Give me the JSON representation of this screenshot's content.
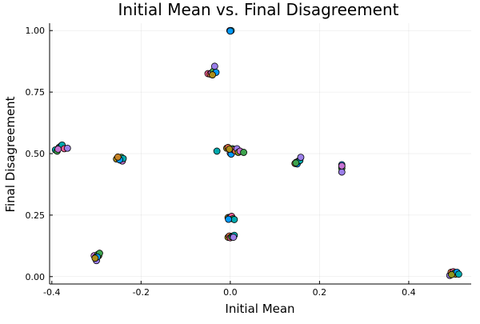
{
  "chart_data": {
    "type": "scatter",
    "title": "Initial Mean vs. Final Disagreement",
    "xlabel": "Initial Mean",
    "ylabel": "Final Disagreement",
    "xlim": [
      -0.405,
      0.54
    ],
    "ylim": [
      -0.03,
      1.03
    ],
    "x_ticks": [
      -0.4,
      -0.2,
      0.0,
      0.2,
      0.4
    ],
    "x_tick_labels": [
      "-0.4",
      "-0.2",
      "0.0",
      "0.2",
      "0.4"
    ],
    "y_ticks": [
      0.0,
      0.25,
      0.5,
      0.75,
      1.0
    ],
    "y_tick_labels": [
      "0.00",
      "0.25",
      "0.50",
      "0.75",
      "1.00"
    ],
    "grid": true,
    "legend": "none",
    "colors": [
      "#009AFA",
      "#E36F47",
      "#3EA44E",
      "#C371D2",
      "#AC8E18",
      "#00A9AD",
      "#ED5E93",
      "#C68225",
      "#00A98D",
      "#8E971E",
      "#00A9CD",
      "#9B7FE9"
    ],
    "points": [
      {
        "x": -0.392,
        "y": 0.515,
        "c": 5
      },
      {
        "x": -0.388,
        "y": 0.51,
        "c": 2
      },
      {
        "x": -0.384,
        "y": 0.525,
        "c": 4
      },
      {
        "x": -0.38,
        "y": 0.53,
        "c": 0
      },
      {
        "x": -0.377,
        "y": 0.535,
        "c": 5
      },
      {
        "x": -0.372,
        "y": 0.52,
        "c": 6
      },
      {
        "x": -0.365,
        "y": 0.522,
        "c": 11
      },
      {
        "x": -0.386,
        "y": 0.518,
        "c": 3
      },
      {
        "x": -0.255,
        "y": 0.478,
        "c": 4
      },
      {
        "x": -0.25,
        "y": 0.482,
        "c": 1
      },
      {
        "x": -0.247,
        "y": 0.474,
        "c": 6
      },
      {
        "x": -0.244,
        "y": 0.485,
        "c": 2
      },
      {
        "x": -0.242,
        "y": 0.47,
        "c": 3
      },
      {
        "x": -0.24,
        "y": 0.48,
        "c": 5
      },
      {
        "x": -0.248,
        "y": 0.475,
        "c": 0
      },
      {
        "x": -0.252,
        "y": 0.486,
        "c": 7
      },
      {
        "x": -0.305,
        "y": 0.085,
        "c": 3
      },
      {
        "x": -0.302,
        "y": 0.078,
        "c": 1
      },
      {
        "x": -0.3,
        "y": 0.065,
        "c": 11
      },
      {
        "x": -0.297,
        "y": 0.09,
        "c": 2
      },
      {
        "x": -0.295,
        "y": 0.085,
        "c": 9
      },
      {
        "x": -0.293,
        "y": 0.095,
        "c": 2
      },
      {
        "x": -0.298,
        "y": 0.08,
        "c": 0
      },
      {
        "x": -0.303,
        "y": 0.075,
        "c": 4
      },
      {
        "x": -0.05,
        "y": 0.825,
        "c": 6
      },
      {
        "x": -0.045,
        "y": 0.823,
        "c": 1
      },
      {
        "x": -0.042,
        "y": 0.828,
        "c": 3
      },
      {
        "x": -0.038,
        "y": 0.835,
        "c": 2
      },
      {
        "x": -0.035,
        "y": 0.855,
        "c": 11
      },
      {
        "x": -0.032,
        "y": 0.83,
        "c": 0
      },
      {
        "x": -0.04,
        "y": 0.82,
        "c": 4
      },
      {
        "x": 0.0,
        "y": 1.0,
        "c": 0
      },
      {
        "x": 0.001,
        "y": 1.0,
        "c": 2
      },
      {
        "x": 0.002,
        "y": 1.0,
        "c": 5
      },
      {
        "x": -0.001,
        "y": 1.0,
        "c": 3
      },
      {
        "x": 0.0,
        "y": 0.998,
        "c": 0
      },
      {
        "x": -0.03,
        "y": 0.51,
        "c": 5
      },
      {
        "x": -0.008,
        "y": 0.522,
        "c": 4
      },
      {
        "x": -0.005,
        "y": 0.525,
        "c": 1
      },
      {
        "x": 0.0,
        "y": 0.502,
        "c": 3
      },
      {
        "x": 0.002,
        "y": 0.498,
        "c": 0
      },
      {
        "x": 0.005,
        "y": 0.52,
        "c": 2
      },
      {
        "x": 0.008,
        "y": 0.515,
        "c": 6
      },
      {
        "x": 0.012,
        "y": 0.51,
        "c": 1
      },
      {
        "x": 0.015,
        "y": 0.52,
        "c": 11
      },
      {
        "x": 0.018,
        "y": 0.505,
        "c": 9
      },
      {
        "x": 0.022,
        "y": 0.51,
        "c": 3
      },
      {
        "x": 0.03,
        "y": 0.505,
        "c": 2
      },
      {
        "x": -0.002,
        "y": 0.518,
        "c": 4
      },
      {
        "x": -0.005,
        "y": 0.24,
        "c": 4
      },
      {
        "x": -0.002,
        "y": 0.238,
        "c": 1
      },
      {
        "x": 0.0,
        "y": 0.242,
        "c": 3
      },
      {
        "x": 0.003,
        "y": 0.245,
        "c": 6
      },
      {
        "x": 0.006,
        "y": 0.235,
        "c": 2
      },
      {
        "x": 0.009,
        "y": 0.232,
        "c": 5
      },
      {
        "x": -0.004,
        "y": 0.233,
        "c": 0
      },
      {
        "x": -0.005,
        "y": 0.16,
        "c": 4
      },
      {
        "x": -0.002,
        "y": 0.165,
        "c": 1
      },
      {
        "x": 0.0,
        "y": 0.158,
        "c": 6
      },
      {
        "x": 0.003,
        "y": 0.162,
        "c": 2
      },
      {
        "x": 0.006,
        "y": 0.165,
        "c": 0
      },
      {
        "x": 0.009,
        "y": 0.168,
        "c": 5
      },
      {
        "x": 0.007,
        "y": 0.16,
        "c": 11
      },
      {
        "x": 0.145,
        "y": 0.46,
        "c": 1
      },
      {
        "x": 0.148,
        "y": 0.465,
        "c": 3
      },
      {
        "x": 0.15,
        "y": 0.458,
        "c": 0
      },
      {
        "x": 0.153,
        "y": 0.47,
        "c": 4
      },
      {
        "x": 0.156,
        "y": 0.472,
        "c": 5
      },
      {
        "x": 0.158,
        "y": 0.485,
        "c": 11
      },
      {
        "x": 0.147,
        "y": 0.462,
        "c": 2
      },
      {
        "x": 0.25,
        "y": 0.455,
        "c": 0
      },
      {
        "x": 0.25,
        "y": 0.448,
        "c": 5
      },
      {
        "x": 0.25,
        "y": 0.44,
        "c": 2
      },
      {
        "x": 0.25,
        "y": 0.425,
        "c": 11
      },
      {
        "x": 0.25,
        "y": 0.45,
        "c": 3
      },
      {
        "x": 0.492,
        "y": 0.005,
        "c": 11
      },
      {
        "x": 0.495,
        "y": 0.018,
        "c": 1
      },
      {
        "x": 0.498,
        "y": 0.012,
        "c": 3
      },
      {
        "x": 0.5,
        "y": 0.02,
        "c": 6
      },
      {
        "x": 0.503,
        "y": 0.015,
        "c": 2
      },
      {
        "x": 0.505,
        "y": 0.01,
        "c": 4
      },
      {
        "x": 0.508,
        "y": 0.018,
        "c": 0
      },
      {
        "x": 0.512,
        "y": 0.01,
        "c": 5
      },
      {
        "x": 0.496,
        "y": 0.008,
        "c": 9
      }
    ]
  }
}
